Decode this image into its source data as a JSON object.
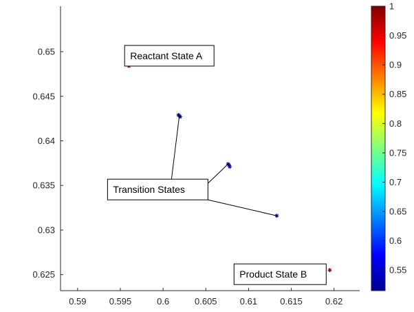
{
  "chart_data": {
    "type": "scatter",
    "title": "",
    "xlabel": "",
    "ylabel": "",
    "xlim": [
      0.588,
      0.623
    ],
    "ylim": [
      0.6232,
      0.6551
    ],
    "xticks": [
      "0.59",
      "0.595",
      "0.6",
      "0.605",
      "0.61",
      "0.615",
      "0.62"
    ],
    "yticks": [
      "0.625",
      "0.63",
      "0.635",
      "0.64",
      "0.645",
      "0.65"
    ],
    "grid": false,
    "marker": "asterisk",
    "points": [
      {
        "x": 0.596,
        "y": 0.6484,
        "c": 1.0
      },
      {
        "x": 0.6018,
        "y": 0.6429,
        "c": 0.53
      },
      {
        "x": 0.6019,
        "y": 0.6428,
        "c": 0.52
      },
      {
        "x": 0.602,
        "y": 0.6427,
        "c": 0.54
      },
      {
        "x": 0.6076,
        "y": 0.6374,
        "c": 0.53
      },
      {
        "x": 0.6077,
        "y": 0.6373,
        "c": 0.52
      },
      {
        "x": 0.6078,
        "y": 0.6371,
        "c": 0.54
      },
      {
        "x": 0.6133,
        "y": 0.6316,
        "c": 0.52
      },
      {
        "x": 0.6195,
        "y": 0.6255,
        "c": 1.0
      }
    ],
    "annotations": [
      {
        "text": "Reactant State A",
        "box_x": 0.5955,
        "box_y": 0.6507
      },
      {
        "text": "Transition States",
        "box_x": 0.5935,
        "box_y": 0.6357,
        "arrows_to": [
          [
            0.6019,
            0.6428
          ],
          [
            0.6076,
            0.6374
          ],
          [
            0.6133,
            0.6316
          ]
        ]
      },
      {
        "text": "Product State B",
        "box_x": 0.6083,
        "box_y": 0.6262
      }
    ],
    "colorbar": {
      "range": [
        0.515,
        1.0
      ],
      "ticks": [
        "0.55",
        "0.6",
        "0.65",
        "0.7",
        "0.75",
        "0.8",
        "0.85",
        "0.9",
        "0.95",
        "1"
      ],
      "colormap": "jet"
    }
  }
}
